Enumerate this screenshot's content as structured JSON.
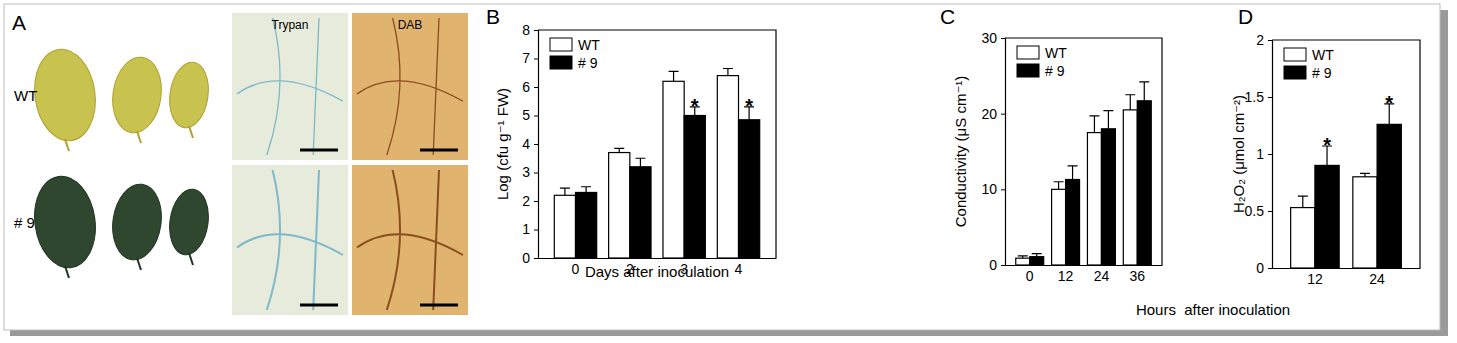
{
  "panel_a": {
    "label": "A",
    "rows": [
      "WT",
      "# 9"
    ],
    "columns": [
      "Trypan",
      "DAB"
    ]
  },
  "chart_data": [
    {
      "type": "bar",
      "panel_label": "B",
      "x_label": "Days after inoculation",
      "y_label": "Log (cfu g⁻¹ FW)",
      "categories": [
        "0",
        "2",
        "3",
        "4"
      ],
      "series": [
        {
          "name": "WT",
          "color": "#ffffff",
          "values": [
            2.2,
            3.7,
            6.2,
            6.4
          ],
          "errors": [
            0.25,
            0.15,
            0.35,
            0.25
          ],
          "significance": [
            null,
            null,
            null,
            null
          ]
        },
        {
          "name": "# 9",
          "color": "#000000",
          "values": [
            2.3,
            3.2,
            5.0,
            4.85
          ],
          "errors": [
            0.2,
            0.3,
            0.3,
            0.45
          ],
          "significance": [
            null,
            null,
            "*",
            "*"
          ]
        }
      ],
      "ylim": [
        0,
        8
      ],
      "yticks": [
        0,
        1,
        2,
        3,
        4,
        5,
        6,
        7,
        8
      ],
      "legend": "top-left",
      "grid": false
    },
    {
      "type": "bar",
      "panel_label": "C",
      "x_label": "Hours  after inoculation",
      "y_label": "Conductivity (μS cm⁻¹)",
      "categories": [
        "0",
        "12",
        "24",
        "36"
      ],
      "series": [
        {
          "name": "WT",
          "color": "#ffffff",
          "values": [
            0.9,
            10.0,
            17.5,
            20.5
          ],
          "errors": [
            0.3,
            1.0,
            2.2,
            2.0
          ],
          "significance": [
            null,
            null,
            null,
            null
          ]
        },
        {
          "name": "# 9",
          "color": "#000000",
          "values": [
            1.1,
            11.3,
            18.0,
            21.7
          ],
          "errors": [
            0.4,
            1.8,
            2.4,
            2.5
          ],
          "significance": [
            null,
            null,
            null,
            null
          ]
        }
      ],
      "ylim": [
        0,
        30
      ],
      "yticks": [
        0,
        10,
        20,
        30
      ],
      "legend": "top-left",
      "grid": false
    },
    {
      "type": "bar",
      "panel_label": "D",
      "y_label": "H₂O₂ (μmol cm⁻²)",
      "categories": [
        "12",
        "24"
      ],
      "series": [
        {
          "name": "WT",
          "color": "#ffffff",
          "values": [
            0.53,
            0.8
          ],
          "errors": [
            0.1,
            0.03
          ],
          "significance": [
            null,
            null
          ]
        },
        {
          "name": "# 9",
          "color": "#000000",
          "values": [
            0.9,
            1.26
          ],
          "errors": [
            0.17,
            0.18
          ],
          "significance": [
            "*",
            "*"
          ]
        }
      ],
      "ylim": [
        0,
        2
      ],
      "yticks": [
        0,
        0.5,
        1,
        1.5,
        2
      ],
      "legend": "top-left",
      "grid": false
    }
  ]
}
